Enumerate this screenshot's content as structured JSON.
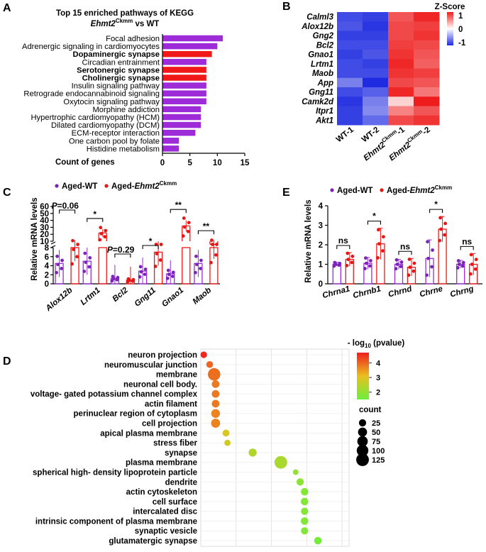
{
  "panels": {
    "A": "A",
    "B": "B",
    "C": "C",
    "D": "D",
    "E": "E"
  },
  "colors": {
    "purple_bar": "#9d2bd8",
    "red_bar": "#f01818",
    "wt_dot": "#7a25b8",
    "ko_dot": "#e81515",
    "heat_low": "#1f2be0",
    "heat_mid": "#ffffff",
    "heat_high": "#ee1c1c",
    "grad_high": "#f01e1e",
    "grad_mid": "#e8c020",
    "grad_low": "#6cf03c"
  },
  "chart_data": [
    {
      "id": "A",
      "type": "bar",
      "orientation": "horizontal",
      "title": "Top 15 enriched pathways of KEGG",
      "subtitle": {
        "gene": "Ehmt2",
        "sup": "Ckmm",
        "rest": " vs WT"
      },
      "xlabel": "Count of genes",
      "xlim": [
        0,
        15
      ],
      "xticks": [
        "0",
        "5",
        "10",
        "15"
      ],
      "categories": [
        "Focal adhesion",
        "Adrenergic signaling in cardiomyocytes",
        "Dopaminergic synapse",
        "Circadian entrainment",
        "Serotonergic synapse",
        "Cholinergic synapse",
        "Insulin signaling pathway",
        "Retrograde endocannabinoid signaling",
        "Oxytocin signaling pathway",
        "Morphine addiction",
        "Hypertrophic cardiomyopathy (HCM)",
        "Dilated cardiomyopathy (DCM)",
        "ECM-receptor interaction",
        "One carbon pool by folate",
        "Histidine metabolism"
      ],
      "values": [
        11,
        10,
        9,
        8,
        8,
        8,
        8,
        8,
        8,
        7,
        7,
        7,
        6,
        3,
        3
      ],
      "highlighted": [
        2,
        4,
        5
      ]
    },
    {
      "id": "B",
      "type": "heatmap",
      "legend_title": "Z-Score",
      "legend_ticks": [
        "1",
        "0",
        "-1"
      ],
      "rows": [
        "Calml3",
        "Alox12b",
        "Gng2",
        "Bcl2",
        "Gnao1",
        "Lrtm1",
        "Maob",
        "App",
        "Gng11",
        "Camk2d",
        "Itpr1",
        "Akt1"
      ],
      "columns": [
        {
          "name": "WT-1",
          "sup": ""
        },
        {
          "name": "WT-2",
          "sup": ""
        },
        {
          "name": "Ehmt2",
          "sup": "Ckmm",
          "suffix": "-1"
        },
        {
          "name": "Ehmt2",
          "sup": "Ckmm",
          "suffix": "-2"
        }
      ],
      "values": [
        [
          -0.85,
          -0.9,
          0.75,
          0.95
        ],
        [
          -0.8,
          -0.95,
          0.8,
          0.85
        ],
        [
          -0.9,
          -0.9,
          0.8,
          0.9
        ],
        [
          -0.85,
          -0.85,
          0.85,
          0.8
        ],
        [
          -0.9,
          -0.8,
          0.9,
          0.75
        ],
        [
          -0.85,
          -0.9,
          0.95,
          0.7
        ],
        [
          -0.85,
          -0.85,
          0.9,
          0.85
        ],
        [
          -0.6,
          -1.0,
          0.8,
          0.75
        ],
        [
          -0.85,
          -0.75,
          0.95,
          0.6
        ],
        [
          -0.95,
          -0.6,
          0.2,
          1.0
        ],
        [
          -0.9,
          -0.55,
          0.55,
          0.75
        ],
        [
          -0.9,
          -0.7,
          0.8,
          0.9
        ]
      ]
    },
    {
      "id": "C",
      "type": "bar",
      "ylabel": "Relative mRNA levels",
      "legend": [
        {
          "label": "Aged-WT",
          "gene": "",
          "sup": ""
        },
        {
          "label": "Aged-",
          "gene": "Ehmt2",
          "sup": "Ckmm"
        }
      ],
      "broken_axis": true,
      "upper_range": [
        10,
        60
      ],
      "upper_ticks": [
        "60",
        "50",
        "40",
        "30",
        "20",
        "10"
      ],
      "lower_range": [
        0,
        8
      ],
      "lower_ticks": [
        "8",
        "6",
        "4",
        "2",
        "0"
      ],
      "categories": [
        "Alox12b",
        "Lrtm1",
        "Bcl2",
        "Gng11",
        "Gnao1",
        "Maob"
      ],
      "series": [
        {
          "name": "Aged-WT",
          "values": [
            4.5,
            5.0,
            1.2,
            2.8,
            2.2,
            4.5
          ]
        },
        {
          "name": "Aged-Ehmt2Ckmm",
          "values": [
            8.0,
            22.0,
            0.8,
            7.0,
            32.0,
            8.5
          ]
        }
      ],
      "annotations": [
        {
          "category": "Alox12b",
          "text": "=0.06",
          "p_prefix": "P"
        },
        {
          "category": "Lrtm1",
          "text": "*"
        },
        {
          "category": "Bcl2",
          "text": "=0.29",
          "p_prefix": "P"
        },
        {
          "category": "Gng11",
          "text": "*"
        },
        {
          "category": "Gnao1",
          "text": "**"
        },
        {
          "category": "Maob",
          "text": "**"
        }
      ]
    },
    {
      "id": "E",
      "type": "bar",
      "ylabel": "Relative mRNA levels",
      "legend": [
        {
          "label": "Aged-WT",
          "gene": "",
          "sup": ""
        },
        {
          "label": "Aged-",
          "gene": "Ehmt2",
          "sup": "Ckmm"
        }
      ],
      "ylim": [
        0,
        4
      ],
      "yticks": [
        "0",
        "1",
        "2",
        "3",
        "4"
      ],
      "categories": [
        "Chrna1",
        "Chrnb1",
        "Chrnd",
        "Chrne",
        "Chrng"
      ],
      "series": [
        {
          "name": "Aged-WT",
          "values": [
            1.0,
            1.05,
            1.0,
            1.3,
            1.0
          ],
          "sd": [
            0.1,
            0.3,
            0.25,
            0.95,
            0.2
          ]
        },
        {
          "name": "Aged-Ehmt2Ckmm",
          "values": [
            1.25,
            2.05,
            0.85,
            2.8,
            1.0
          ],
          "sd": [
            0.35,
            0.8,
            0.45,
            0.65,
            0.55
          ]
        }
      ],
      "annotations": [
        "ns",
        "*",
        "ns",
        "*",
        "ns"
      ]
    },
    {
      "id": "D",
      "type": "scatter",
      "style": "dot plot",
      "categories": [
        "neuron projection",
        "neuromuscular junction",
        "membrane",
        "neuronal cell body.",
        "voltage- gated potassium channel complex",
        "actin filament",
        "perinuclear region of cytoplasm",
        "cell projection",
        "apical plasma membrane",
        "stress fiber",
        "synapse",
        "plasma membrane",
        "spherical high- density lipoprotein particle",
        "dendrite",
        "actin cytoskeleton",
        "cell surface",
        "intercalated disc",
        "intrinsic component of plasma membrane",
        "synaptic vesicle",
        "glutamatergic synapse"
      ],
      "x": [
        0.02,
        0.06,
        0.09,
        0.1,
        0.1,
        0.1,
        0.1,
        0.1,
        0.17,
        0.18,
        0.35,
        0.54,
        0.64,
        0.67,
        0.7,
        0.7,
        0.7,
        0.7,
        0.7,
        0.79
      ],
      "neglog10_pvalue": [
        4.6,
        4.0,
        3.9,
        3.8,
        3.8,
        3.8,
        3.7,
        3.7,
        2.9,
        2.8,
        2.4,
        2.3,
        2.0,
        1.9,
        1.8,
        1.8,
        1.8,
        1.8,
        1.8,
        1.6
      ],
      "count": [
        18,
        20,
        120,
        30,
        30,
        30,
        45,
        50,
        22,
        15,
        35,
        125,
        10,
        25,
        28,
        28,
        25,
        28,
        25,
        28
      ],
      "color_legend_title": {
        "prefix": "- log",
        "sub": "10",
        "suffix": " (pvalue)"
      },
      "color_ticks": [
        "4",
        "3",
        "2"
      ],
      "color_range": [
        1.5,
        4.7
      ],
      "size_legend_title": "count",
      "size_ticks": [
        "25",
        "50",
        "75",
        "100",
        "125"
      ]
    }
  ]
}
